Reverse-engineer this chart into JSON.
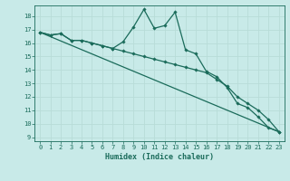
{
  "xlabel": "Humidex (Indice chaleur)",
  "ylabel": "",
  "bg_color": "#c8eae8",
  "grid_color": "#b8dcd8",
  "line_color": "#1a6b5a",
  "xlim": [
    -0.5,
    23.5
  ],
  "ylim": [
    8.7,
    18.8
  ],
  "yticks": [
    9,
    10,
    11,
    12,
    13,
    14,
    15,
    16,
    17,
    18
  ],
  "xticks": [
    0,
    1,
    2,
    3,
    4,
    5,
    6,
    7,
    8,
    9,
    10,
    11,
    12,
    13,
    14,
    15,
    16,
    17,
    18,
    19,
    20,
    21,
    22,
    23
  ],
  "line1_x": [
    0,
    1,
    2,
    3,
    4,
    5,
    6,
    7,
    8,
    9,
    10,
    11,
    12,
    13,
    14,
    15,
    16,
    17,
    18,
    19,
    20,
    21,
    22,
    23
  ],
  "line1_y": [
    16.8,
    16.6,
    16.7,
    16.2,
    16.2,
    16.0,
    15.8,
    15.6,
    16.1,
    17.2,
    18.5,
    17.1,
    17.3,
    18.3,
    15.5,
    15.2,
    13.9,
    13.5,
    12.7,
    11.5,
    11.2,
    10.5,
    9.7,
    9.4
  ],
  "line2_x": [
    0,
    1,
    2,
    3,
    4,
    5,
    6,
    7,
    8,
    9,
    10,
    11,
    12,
    13,
    14,
    15,
    16,
    17,
    18,
    19,
    20,
    21,
    22,
    23
  ],
  "line2_y": [
    16.8,
    16.6,
    16.7,
    16.2,
    16.2,
    16.0,
    15.8,
    15.6,
    15.4,
    15.2,
    15.0,
    14.8,
    14.6,
    14.4,
    14.2,
    14.0,
    13.8,
    13.3,
    12.8,
    12.0,
    11.5,
    11.0,
    10.3,
    9.4
  ],
  "line3_x": [
    0,
    23
  ],
  "line3_y": [
    16.8,
    9.4
  ],
  "marker_style": "D",
  "marker_size": 1.8,
  "line_width": 0.9,
  "xlabel_fontsize": 6,
  "tick_fontsize": 5,
  "tick_color": "#1a6b5a"
}
